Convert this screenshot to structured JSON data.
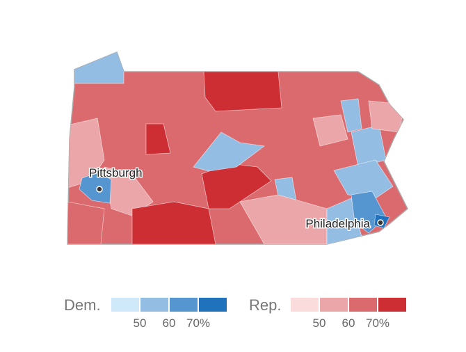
{
  "map": {
    "cities": [
      {
        "name": "Pittsburgh"
      },
      {
        "name": "Philadelphia"
      }
    ]
  },
  "legend": {
    "groups": [
      {
        "label": "Dem.",
        "colors": [
          "#cfe8fa",
          "#93bde2",
          "#5595d0",
          "#1f72bb"
        ],
        "ticks": [
          "50",
          "60",
          "70%"
        ]
      },
      {
        "label": "Rep.",
        "colors": [
          "#fbdcdc",
          "#eaa6a9",
          "#db6a6e",
          "#cc2e33"
        ],
        "ticks": [
          "50",
          "60",
          "70%"
        ]
      }
    ]
  }
}
